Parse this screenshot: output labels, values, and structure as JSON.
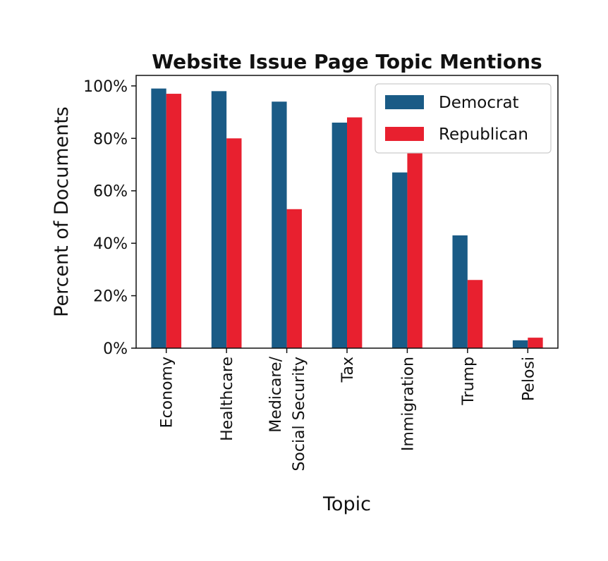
{
  "chart_data": {
    "type": "bar",
    "title": "Website Issue Page Topic Mentions",
    "xlabel": "Topic",
    "ylabel": "Percent of Documents",
    "categories": [
      [
        "Economy"
      ],
      [
        "Healthcare"
      ],
      [
        "Medicare/",
        "Social Security"
      ],
      [
        "Tax"
      ],
      [
        "Immigration"
      ],
      [
        "Trump"
      ],
      [
        "Pelosi"
      ]
    ],
    "series": [
      {
        "name": "Democrat",
        "color": "#1a5b86",
        "values": [
          99,
          98,
          94,
          86,
          67,
          43,
          3
        ]
      },
      {
        "name": "Republican",
        "color": "#e8202f",
        "values": [
          97,
          80,
          53,
          88,
          78,
          26,
          4
        ]
      }
    ],
    "ylim": [
      0,
      104
    ],
    "yticks": [
      0,
      20,
      40,
      60,
      80,
      100
    ],
    "ytick_labels": [
      "0%",
      "20%",
      "40%",
      "60%",
      "80%",
      "100%"
    ],
    "legend_position": "top-right",
    "grid": false
  }
}
